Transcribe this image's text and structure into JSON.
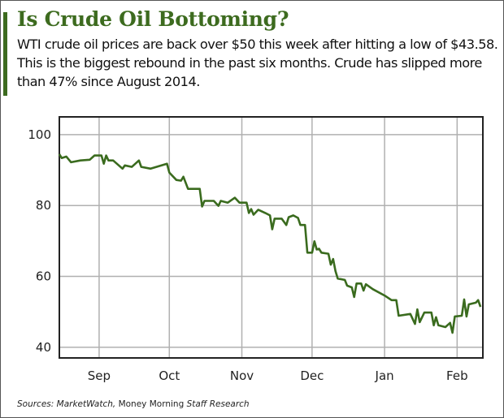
{
  "header": {
    "title": "Is Crude Oil Bottoming?",
    "subtitle": "WTI crude oil prices are back over $50 this week after hitting a low of $43.58. This is the biggest rebound in the past six months. Crude has slipped more than 47% since August 2014."
  },
  "footer": {
    "source_prefix": "Sources: MarketWatch,",
    "source_middle": "Money Morning",
    "source_suffix": "Staff Research"
  },
  "colors": {
    "accent": "#3d6b1f",
    "line": "#3a6b1e",
    "grid": "#b0b0b0"
  },
  "chart_data": {
    "type": "line",
    "title": "",
    "xlabel": "",
    "ylabel": "",
    "xlim": [
      "2014-08-15",
      "2015-02-12"
    ],
    "ylim": [
      37,
      105
    ],
    "grid": true,
    "yticks": [
      100,
      80,
      60,
      40
    ],
    "xticks": [
      {
        "label": "Sep",
        "date": "2014-09-01"
      },
      {
        "label": "Oct",
        "date": "2014-10-01"
      },
      {
        "label": "Nov",
        "date": "2014-11-01"
      },
      {
        "label": "Dec",
        "date": "2014-12-01"
      },
      {
        "label": "Jan",
        "date": "2015-01-01"
      },
      {
        "label": "Feb",
        "date": "2015-02-01"
      }
    ],
    "series": [
      {
        "x": [
          "2014-08-15",
          "2014-08-16",
          "2014-08-18",
          "2014-08-20",
          "2014-08-24",
          "2014-08-28",
          "2014-08-30",
          "2014-09-02",
          "2014-09-03",
          "2014-09-04",
          "2014-09-05",
          "2014-09-07",
          "2014-09-11",
          "2014-09-12",
          "2014-09-15",
          "2014-09-18",
          "2014-09-19",
          "2014-09-23",
          "2014-09-30",
          "2014-10-01",
          "2014-10-04",
          "2014-10-06",
          "2014-10-07",
          "2014-10-09",
          "2014-10-14",
          "2014-10-15",
          "2014-10-16",
          "2014-10-20",
          "2014-10-22",
          "2014-10-23",
          "2014-10-26",
          "2014-10-29",
          "2014-10-31",
          "2014-11-03",
          "2014-11-04",
          "2014-11-05",
          "2014-11-06",
          "2014-11-08",
          "2014-11-11",
          "2014-11-13",
          "2014-11-14",
          "2014-11-15",
          "2014-11-18",
          "2014-11-20",
          "2014-11-21",
          "2014-11-23",
          "2014-11-25",
          "2014-11-26",
          "2014-11-28",
          "2014-11-29",
          "2014-12-01",
          "2014-12-02",
          "2014-12-03",
          "2014-12-04",
          "2014-12-05",
          "2014-12-08",
          "2014-12-09",
          "2014-12-10",
          "2014-12-11",
          "2014-12-12",
          "2014-12-15",
          "2014-12-16",
          "2014-12-18",
          "2014-12-19",
          "2014-12-20",
          "2014-12-22",
          "2014-12-23",
          "2014-12-24",
          "2014-12-27",
          "2015-01-01",
          "2015-01-04",
          "2015-01-06",
          "2015-01-07",
          "2015-01-12",
          "2015-01-14",
          "2015-01-15",
          "2015-01-16",
          "2015-01-18",
          "2015-01-21",
          "2015-01-22",
          "2015-01-23",
          "2015-01-24",
          "2015-01-27",
          "2015-01-29",
          "2015-01-30",
          "2015-01-31",
          "2015-02-03",
          "2015-02-04",
          "2015-02-05",
          "2015-02-06",
          "2015-02-09",
          "2015-02-10",
          "2015-02-11"
        ],
        "y": [
          94.5,
          93.4,
          93.8,
          92.2,
          92.7,
          92.9,
          94.1,
          94.1,
          91.8,
          94.1,
          92.7,
          92.7,
          90.4,
          91.3,
          90.9,
          92.7,
          90.9,
          90.4,
          91.8,
          89.3,
          87.2,
          87.0,
          88.1,
          84.7,
          84.7,
          79.7,
          81.3,
          81.3,
          79.9,
          81.3,
          80.8,
          82.2,
          80.8,
          80.8,
          77.9,
          79.0,
          77.4,
          78.8,
          77.9,
          77.2,
          73.3,
          76.3,
          76.3,
          74.5,
          76.7,
          77.2,
          76.5,
          74.5,
          74.5,
          66.7,
          66.7,
          69.9,
          67.6,
          67.8,
          66.7,
          66.4,
          63.3,
          64.9,
          61.5,
          59.4,
          59.0,
          57.4,
          56.9,
          54.2,
          58.0,
          58.0,
          56.0,
          57.8,
          56.4,
          54.6,
          53.3,
          53.3,
          48.9,
          49.4,
          46.6,
          50.7,
          47.1,
          49.8,
          49.8,
          46.2,
          48.5,
          46.2,
          45.7,
          46.9,
          44.1,
          48.7,
          48.9,
          53.5,
          48.7,
          52.1,
          52.6,
          53.3,
          51.4
        ]
      }
    ]
  }
}
